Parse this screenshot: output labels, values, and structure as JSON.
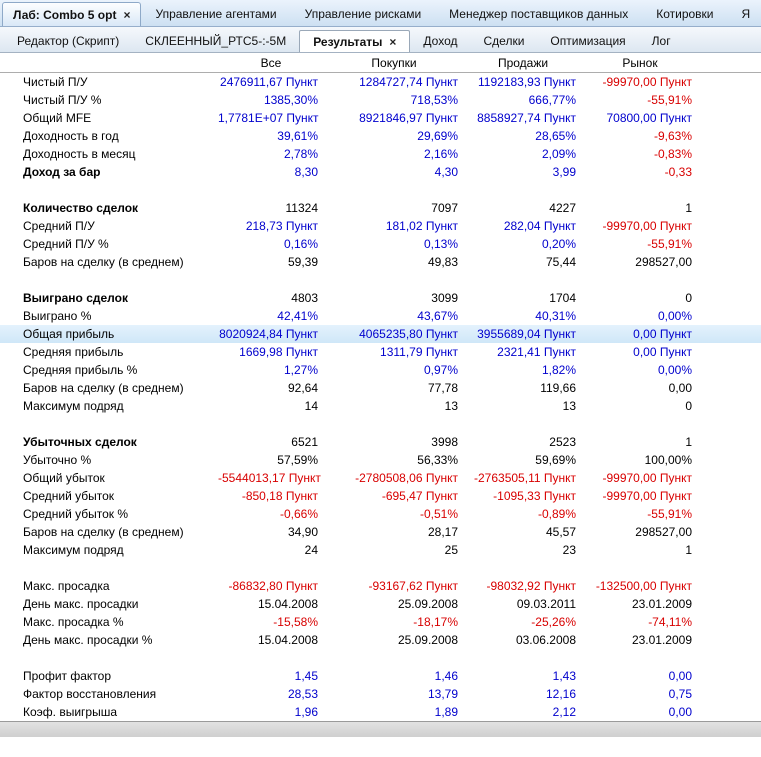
{
  "icons": {
    "close": "×"
  },
  "main_tabs": [
    {
      "label": "Лаб: Combo 5 opt",
      "active": true,
      "closable": true
    },
    {
      "label": "Управление агентами"
    },
    {
      "label": "Управление рисками"
    },
    {
      "label": "Менеджер поставщиков данных"
    },
    {
      "label": "Котировки"
    },
    {
      "label": "Я"
    }
  ],
  "sub_tabs": [
    {
      "label": "Редактор (Скрипт)"
    },
    {
      "label": "СКЛЕЕННЫЙ_РТС5-:-5М"
    },
    {
      "label": "Результаты",
      "active": true,
      "closable": true
    },
    {
      "label": "Доход"
    },
    {
      "label": "Сделки"
    },
    {
      "label": "Оптимизация"
    },
    {
      "label": "Лог"
    }
  ],
  "results": {
    "columns": [
      "Все",
      "Покупки",
      "Продажи",
      "Рынок"
    ],
    "colors": {
      "blue": "#0000cd",
      "red": "#d80000",
      "black": "#000000"
    },
    "rows": [
      {
        "label": "Чистый П/У",
        "values": [
          "2476911,67 Пункт",
          "1284727,74 Пункт",
          "1192183,93 Пункт",
          "-99970,00 Пункт"
        ],
        "colors": [
          "blue",
          "blue",
          "blue",
          "red"
        ]
      },
      {
        "label": "Чистый П/У %",
        "values": [
          "1385,30%",
          "718,53%",
          "666,77%",
          "-55,91%"
        ],
        "colors": [
          "blue",
          "blue",
          "blue",
          "red"
        ]
      },
      {
        "label": "Общий MFE",
        "values": [
          "1,7781E+07 Пункт",
          "8921846,97 Пункт",
          "8858927,74 Пункт",
          "70800,00 Пункт"
        ],
        "colors": [
          "blue",
          "blue",
          "blue",
          "blue"
        ]
      },
      {
        "label": "Доходность в год",
        "values": [
          "39,61%",
          "29,69%",
          "28,65%",
          "-9,63%"
        ],
        "colors": [
          "blue",
          "blue",
          "blue",
          "red"
        ]
      },
      {
        "label": "Доходность в месяц",
        "values": [
          "2,78%",
          "2,16%",
          "2,09%",
          "-0,83%"
        ],
        "colors": [
          "blue",
          "blue",
          "blue",
          "red"
        ]
      },
      {
        "label": "Доход за бар",
        "bold": true,
        "values": [
          "8,30",
          "4,30",
          "3,99",
          "-0,33"
        ],
        "colors": [
          "blue",
          "blue",
          "blue",
          "red"
        ]
      },
      {
        "spacer": true
      },
      {
        "label": "Количество сделок",
        "bold": true,
        "values": [
          "11324",
          "7097",
          "4227",
          "1"
        ],
        "colors": [
          "black",
          "black",
          "black",
          "black"
        ]
      },
      {
        "label": "Средний П/У",
        "values": [
          "218,73 Пункт",
          "181,02 Пункт",
          "282,04 Пункт",
          "-99970,00 Пункт"
        ],
        "colors": [
          "blue",
          "blue",
          "blue",
          "red"
        ]
      },
      {
        "label": "Средний П/У %",
        "values": [
          "0,16%",
          "0,13%",
          "0,20%",
          "-55,91%"
        ],
        "colors": [
          "blue",
          "blue",
          "blue",
          "red"
        ]
      },
      {
        "label": "Баров на сделку (в среднем)",
        "values": [
          "59,39",
          "49,83",
          "75,44",
          "298527,00"
        ],
        "colors": [
          "black",
          "black",
          "black",
          "black"
        ]
      },
      {
        "spacer": true
      },
      {
        "label": "Выиграно сделок",
        "bold": true,
        "values": [
          "4803",
          "3099",
          "1704",
          "0"
        ],
        "colors": [
          "black",
          "black",
          "black",
          "black"
        ]
      },
      {
        "label": "Выиграно %",
        "values": [
          "42,41%",
          "43,67%",
          "40,31%",
          "0,00%"
        ],
        "colors": [
          "blue",
          "blue",
          "blue",
          "blue"
        ]
      },
      {
        "label": "Общая прибыль",
        "highlight": true,
        "values": [
          "8020924,84 Пункт",
          "4065235,80 Пункт",
          "3955689,04 Пункт",
          "0,00 Пункт"
        ],
        "colors": [
          "blue",
          "blue",
          "blue",
          "blue"
        ]
      },
      {
        "label": "Средняя прибыль",
        "values": [
          "1669,98 Пункт",
          "1311,79 Пункт",
          "2321,41 Пункт",
          "0,00 Пункт"
        ],
        "colors": [
          "blue",
          "blue",
          "blue",
          "blue"
        ]
      },
      {
        "label": "Средняя прибыль %",
        "values": [
          "1,27%",
          "0,97%",
          "1,82%",
          "0,00%"
        ],
        "colors": [
          "blue",
          "blue",
          "blue",
          "blue"
        ]
      },
      {
        "label": "Баров на сделку (в среднем)",
        "values": [
          "92,64",
          "77,78",
          "119,66",
          "0,00"
        ],
        "colors": [
          "black",
          "black",
          "black",
          "black"
        ]
      },
      {
        "label": "Максимум подряд",
        "values": [
          "14",
          "13",
          "13",
          "0"
        ],
        "colors": [
          "black",
          "black",
          "black",
          "black"
        ]
      },
      {
        "spacer": true
      },
      {
        "label": "Убыточных сделок",
        "bold": true,
        "values": [
          "6521",
          "3998",
          "2523",
          "1"
        ],
        "colors": [
          "black",
          "black",
          "black",
          "black"
        ]
      },
      {
        "label": "Убыточно %",
        "values": [
          "57,59%",
          "56,33%",
          "59,69%",
          "100,00%"
        ],
        "colors": [
          "black",
          "black",
          "black",
          "black"
        ]
      },
      {
        "label": "Общий убыток",
        "values": [
          "-5544013,17 Пункт",
          "-2780508,06 Пункт",
          "-2763505,11 Пункт",
          "-99970,00 Пункт"
        ],
        "colors": [
          "red",
          "red",
          "red",
          "red"
        ]
      },
      {
        "label": "Средний убыток",
        "values": [
          "-850,18 Пункт",
          "-695,47 Пункт",
          "-1095,33 Пункт",
          "-99970,00 Пункт"
        ],
        "colors": [
          "red",
          "red",
          "red",
          "red"
        ]
      },
      {
        "label": "Средний убыток %",
        "values": [
          "-0,66%",
          "-0,51%",
          "-0,89%",
          "-55,91%"
        ],
        "colors": [
          "red",
          "red",
          "red",
          "red"
        ]
      },
      {
        "label": "Баров на сделку (в среднем)",
        "values": [
          "34,90",
          "28,17",
          "45,57",
          "298527,00"
        ],
        "colors": [
          "black",
          "black",
          "black",
          "black"
        ]
      },
      {
        "label": "Максимум подряд",
        "values": [
          "24",
          "25",
          "23",
          "1"
        ],
        "colors": [
          "black",
          "black",
          "black",
          "black"
        ]
      },
      {
        "spacer": true
      },
      {
        "label": "Макс. просадка",
        "values": [
          "-86832,80 Пункт",
          "-93167,62 Пункт",
          "-98032,92 Пункт",
          "-132500,00 Пункт"
        ],
        "colors": [
          "red",
          "red",
          "red",
          "red"
        ]
      },
      {
        "label": "День макс. просадки",
        "values": [
          "15.04.2008",
          "25.09.2008",
          "09.03.2011",
          "23.01.2009"
        ],
        "colors": [
          "black",
          "black",
          "black",
          "black"
        ]
      },
      {
        "label": "Макс. просадка %",
        "values": [
          "-15,58%",
          "-18,17%",
          "-25,26%",
          "-74,11%"
        ],
        "colors": [
          "red",
          "red",
          "red",
          "red"
        ]
      },
      {
        "label": "День макс. просадки %",
        "values": [
          "15.04.2008",
          "25.09.2008",
          "03.06.2008",
          "23.01.2009"
        ],
        "colors": [
          "black",
          "black",
          "black",
          "black"
        ]
      },
      {
        "spacer": true
      },
      {
        "label": "Профит фактор",
        "values": [
          "1,45",
          "1,46",
          "1,43",
          "0,00"
        ],
        "colors": [
          "blue",
          "blue",
          "blue",
          "blue"
        ]
      },
      {
        "label": "Фактор восстановления",
        "values": [
          "28,53",
          "13,79",
          "12,16",
          "0,75"
        ],
        "colors": [
          "blue",
          "blue",
          "blue",
          "blue"
        ]
      },
      {
        "label": "Коэф. выигрыша",
        "values": [
          "1,96",
          "1,89",
          "2,12",
          "0,00"
        ],
        "colors": [
          "blue",
          "blue",
          "blue",
          "blue"
        ]
      }
    ]
  }
}
